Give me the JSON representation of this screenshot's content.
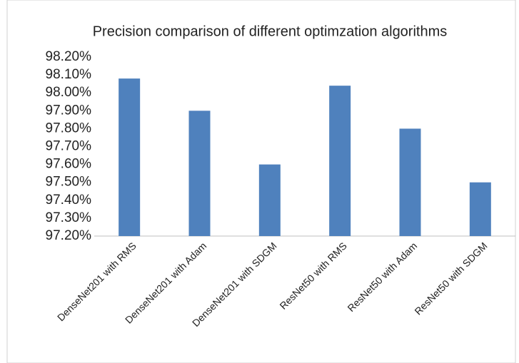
{
  "chart_data": {
    "type": "bar",
    "title": "Precision comparison of different optimzation algorithms",
    "categories": [
      "DenseNet201 with RMS",
      "DenseNet201 with Adam",
      "DenseNet201 with SDGM",
      "ResNet50 with RMS",
      "ResNet50 with Adam",
      "ResNet50 with SDGM"
    ],
    "values": [
      98.08,
      97.9,
      97.6,
      98.04,
      97.8,
      97.5
    ],
    "color": "#4f81bd",
    "ylim": [
      97.2,
      98.2
    ],
    "yticks": [
      {
        "value": 97.2,
        "label": "97.20%"
      },
      {
        "value": 97.3,
        "label": "97.30%"
      },
      {
        "value": 97.4,
        "label": "97.40%"
      },
      {
        "value": 97.5,
        "label": "97.50%"
      },
      {
        "value": 97.6,
        "label": "97.60%"
      },
      {
        "value": 97.7,
        "label": "97.70%"
      },
      {
        "value": 97.8,
        "label": "97.80%"
      },
      {
        "value": 97.9,
        "label": "97.90%"
      },
      {
        "value": 98.0,
        "label": "98.00%"
      },
      {
        "value": 98.1,
        "label": "98.10%"
      },
      {
        "value": 98.2,
        "label": "98.20%"
      }
    ],
    "grid": false
  }
}
